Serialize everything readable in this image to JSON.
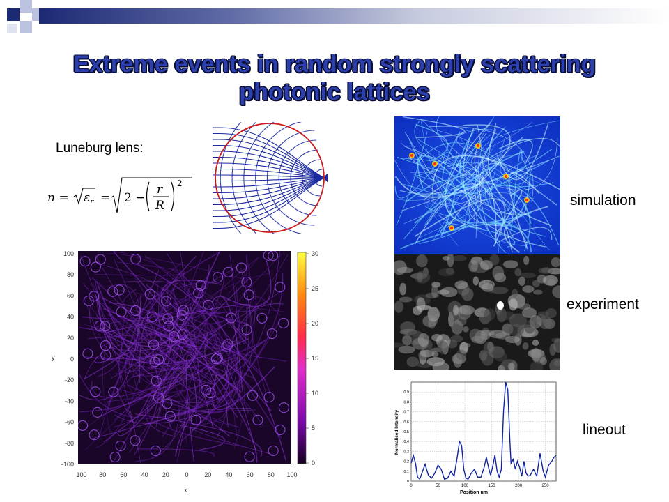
{
  "slide": {
    "title": "Extreme events in random strongly scattering photonic lattices",
    "luneburg_label": "Luneburg lens:",
    "formula_lhs": "n =",
    "formula_mid": "ε",
    "formula_sub": "r",
    "formula_eq2": "=",
    "formula_rhs_2": "2 −",
    "formula_frac_num": "r",
    "formula_frac_den": "R",
    "formula_exp": "2",
    "labels": {
      "simulation": "simulation",
      "experiment": "experiment",
      "lineout": "lineout"
    },
    "colors": {
      "title_fill": "#2b3fae",
      "title_outline": "#0a0e34",
      "header_dark": "#1c2a73",
      "lens_circle": "#cc1b1b",
      "lens_lines": "#1c2aa0"
    }
  },
  "scatter_plot": {
    "xlabel": "x",
    "ylabel": "y",
    "x_ticks": [
      "100",
      "80",
      "60",
      "40",
      "20",
      "0",
      "20",
      "40",
      "60",
      "80",
      "100"
    ],
    "y_ticks": [
      "100",
      "80",
      "60",
      "40",
      "20",
      "0",
      "-20",
      "-40",
      "-60",
      "-80",
      "-100"
    ],
    "colorbar_ticks": [
      "30",
      "25",
      "20",
      "15",
      "10",
      "5",
      "0"
    ]
  },
  "chart_data": {
    "type": "line",
    "title": "",
    "xlabel": "Position um",
    "ylabel": "Normalised Intensity",
    "xlim": [
      0,
      270
    ],
    "ylim": [
      0,
      1
    ],
    "x_ticks": [
      "0",
      "50",
      "100",
      "150",
      "200",
      "250"
    ],
    "y_ticks": [
      "0",
      "0.1",
      "0.2",
      "0.3",
      "0.4",
      "0.5",
      "0.6",
      "0.7",
      "0.8",
      "0.9",
      "1"
    ],
    "grid": true,
    "series": [
      {
        "x": [
          0,
          4,
          8,
          12,
          16,
          20,
          26,
          32,
          38,
          44,
          50,
          56,
          62,
          68,
          74,
          80,
          86,
          90,
          94,
          98,
          102,
          106,
          112,
          118,
          124,
          130,
          136,
          140,
          144,
          148,
          152,
          156,
          160,
          164,
          168,
          172,
          176,
          180,
          184,
          186,
          190,
          194,
          198,
          202,
          206,
          210,
          214,
          218,
          222,
          228,
          234,
          240,
          246,
          250,
          256,
          262,
          266,
          270
        ],
        "values": [
          0.18,
          0.26,
          0.18,
          0.04,
          0.02,
          0.08,
          0.17,
          0.06,
          0.03,
          0.08,
          0.16,
          0.12,
          0.02,
          0.03,
          0.1,
          0.05,
          0.25,
          0.4,
          0.36,
          0.12,
          0.03,
          0.02,
          0.08,
          0.12,
          0.04,
          0.04,
          0.14,
          0.24,
          0.14,
          0.06,
          0.15,
          0.26,
          0.1,
          0.04,
          0.12,
          0.7,
          1.0,
          0.92,
          0.4,
          0.18,
          0.22,
          0.12,
          0.2,
          0.14,
          0.05,
          0.2,
          0.08,
          0.05,
          0.06,
          0.12,
          0.05,
          0.28,
          0.1,
          0.04,
          0.16,
          0.2,
          0.24,
          0.26
        ]
      }
    ]
  }
}
